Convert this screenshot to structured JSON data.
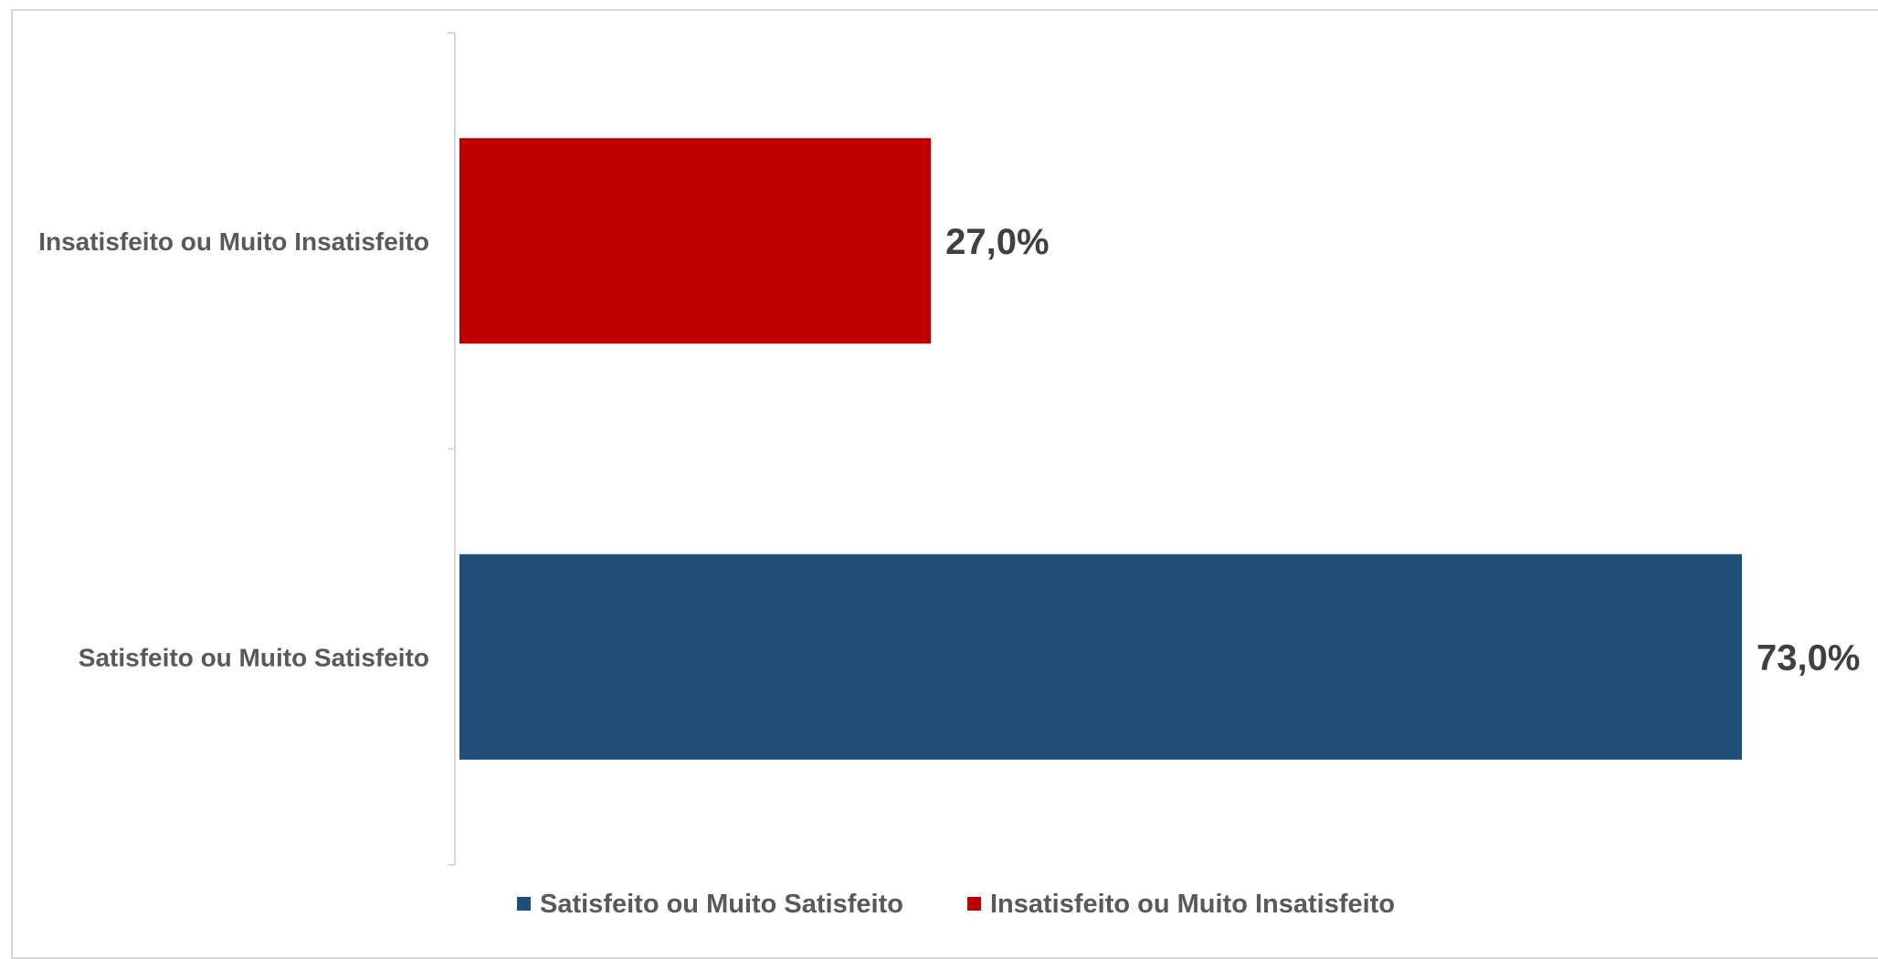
{
  "chart_data": {
    "type": "bar",
    "orientation": "horizontal",
    "categories": [
      "Insatisfeito ou Muito Insatisfeito",
      "Satisfeito ou Muito Satisfeito"
    ],
    "series": [
      {
        "name": "Insatisfeito ou Muito Insatisfeito",
        "category": "Insatisfeito ou Muito Insatisfeito",
        "value": 27.0,
        "label": "27,0%",
        "color": "#c00000"
      },
      {
        "name": "Satisfeito ou Muito Satisfeito",
        "category": "Satisfeito ou Muito Satisfeito",
        "value": 73.0,
        "label": "73,0%",
        "color": "#1f4e79"
      }
    ],
    "xlim": [
      0,
      73
    ],
    "grid": false,
    "legend": {
      "position": "bottom",
      "entries": [
        {
          "label": "Satisfeito ou Muito Satisfeito",
          "color": "#1f4e79"
        },
        {
          "label": "Insatisfeito ou Muito Insatisfeito",
          "color": "#c00000"
        }
      ]
    }
  }
}
